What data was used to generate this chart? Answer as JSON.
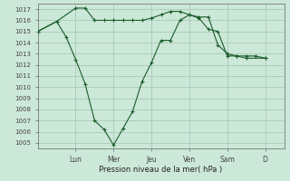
{
  "xlabel": "Pression niveau de la mer( hPa )",
  "ylim": [
    1004.5,
    1017.5
  ],
  "yticks": [
    1005,
    1006,
    1007,
    1008,
    1009,
    1010,
    1011,
    1012,
    1013,
    1014,
    1015,
    1016,
    1017
  ],
  "day_labels": [
    "Lun",
    "Mer",
    "Jeu",
    "Ven",
    "Sam",
    "D"
  ],
  "day_positions": [
    2,
    4,
    6,
    8,
    10,
    12
  ],
  "xlim": [
    0,
    13
  ],
  "bg_color": "#cce8d8",
  "grid_color": "#99bbaa",
  "line_color": "#1a5c2a",
  "series1_x": [
    0,
    1,
    2,
    2.5,
    3,
    3.5,
    4,
    4.5,
    5,
    5.5,
    6,
    6.5,
    7,
    7.5,
    8,
    8.5,
    9,
    9.5,
    10,
    10.5,
    11,
    11.5,
    12
  ],
  "series1_y": [
    1015.0,
    1015.9,
    1017.1,
    1017.1,
    1016.0,
    1016.0,
    1016.0,
    1016.0,
    1016.0,
    1016.0,
    1016.2,
    1016.5,
    1016.8,
    1016.8,
    1016.5,
    1016.2,
    1015.2,
    1015.0,
    1012.8,
    1012.8,
    1012.8,
    1012.8,
    1012.6
  ],
  "series2_x": [
    0,
    1,
    1.5,
    2,
    2.5,
    3,
    3.5,
    4,
    4.5,
    5,
    5.5,
    6,
    6.5,
    7,
    7.5,
    8,
    8.5,
    9,
    9.5,
    10,
    10.5,
    11,
    12
  ],
  "series2_y": [
    1015.0,
    1015.9,
    1014.5,
    1012.5,
    1010.3,
    1007.0,
    1006.2,
    1004.8,
    1006.3,
    1007.8,
    1010.5,
    1012.2,
    1014.2,
    1014.2,
    1016.0,
    1016.5,
    1016.3,
    1016.3,
    1013.8,
    1013.0,
    1012.8,
    1012.6,
    1012.6
  ],
  "marker": "+",
  "markersize": 3.5,
  "linewidth": 0.8,
  "tick_fontsize": 5,
  "xlabel_fontsize": 6,
  "ylabel_fontsize": 5
}
